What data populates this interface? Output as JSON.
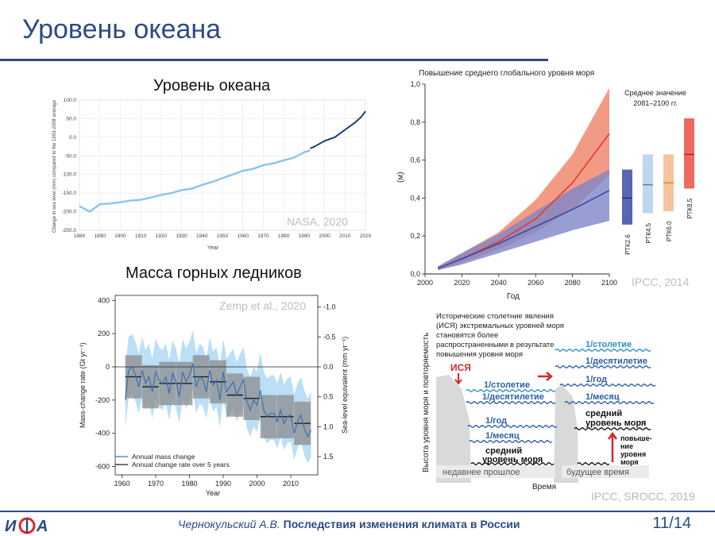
{
  "slide": {
    "title": "Уровень океана",
    "footer_author": "Чернокульский А.В.",
    "footer_talk": "Последствия изменения климата в России",
    "page": "11/14",
    "logo_text": "ИФА",
    "colors": {
      "accent": "#2b4a86",
      "logo_red": "#e0262c"
    }
  },
  "panels": {
    "sea_level": {
      "heading": "Уровень океана",
      "credit": "NASA, 2020"
    },
    "glaciers": {
      "heading": "Масса горных ледников",
      "credit": "Zemp et al., 2020"
    },
    "projection": {
      "credit": "IPCC, 2014"
    },
    "extremes": {
      "credit": "IPCC, SROCC, 2019"
    }
  },
  "chart_data": [
    {
      "id": "nasa-sea-level",
      "type": "line",
      "ylabel": "Change in sea level (mm) compared to the 1993-2008 average",
      "xlabel": "Year",
      "xlim": [
        1880,
        2020
      ],
      "ylim": [
        -250,
        100
      ],
      "xticks": [
        1880,
        1890,
        1900,
        1910,
        1920,
        1930,
        1940,
        1950,
        1960,
        1970,
        1980,
        1990,
        2000,
        2010,
        2020
      ],
      "yticks": [
        "100.0",
        "50.0",
        "0.0",
        "-50.0",
        "-100.0",
        "-150.0",
        "-200.0",
        "-250.0"
      ],
      "grid": true,
      "series": [
        {
          "color": "#8cc2ee",
          "x": [
            1880,
            1885,
            1890,
            1895,
            1900,
            1905,
            1910,
            1915,
            1920,
            1925,
            1930,
            1935,
            1940,
            1945,
            1950,
            1955,
            1960,
            1965,
            1970,
            1975,
            1980,
            1985,
            1990,
            1993
          ],
          "y": [
            -185,
            -200,
            -180,
            -178,
            -175,
            -170,
            -168,
            -162,
            -155,
            -150,
            -142,
            -138,
            -128,
            -120,
            -110,
            -100,
            -90,
            -85,
            -75,
            -70,
            -62,
            -55,
            -40,
            -35
          ]
        },
        {
          "color": "#1d3f6e",
          "x": [
            1993,
            1995,
            2000,
            2005,
            2010,
            2015,
            2018,
            2020
          ],
          "y": [
            -30,
            -25,
            -10,
            0,
            20,
            40,
            55,
            70
          ]
        }
      ]
    },
    {
      "id": "glacier-mass",
      "type": "line",
      "xlabel": "Year",
      "ylabel": "Mass-change rate (Gt yr⁻¹)",
      "ylabel_right": "Sea-level equivalent (mm yr⁻¹)",
      "xlim": [
        1958,
        2018
      ],
      "ylim": [
        -650,
        430
      ],
      "xticks": [
        1960,
        1970,
        1980,
        1990,
        2000,
        2010
      ],
      "yticks": [
        400,
        200,
        0,
        -200,
        -400,
        -600
      ],
      "yticks_right": [
        "-1.0",
        "-0.5",
        "0.0",
        "0.5",
        "1.0",
        "1.5"
      ],
      "legend": [
        "Annual mass change",
        "Annual change rate over 5 years"
      ],
      "legend_position": "bottom-left",
      "series": [
        {
          "name": "Annual mass change",
          "color": "#3d6fb0",
          "x": [
            1961,
            1962,
            1963,
            1964,
            1965,
            1966,
            1967,
            1968,
            1969,
            1970,
            1971,
            1972,
            1973,
            1974,
            1975,
            1976,
            1977,
            1978,
            1979,
            1980,
            1981,
            1982,
            1983,
            1984,
            1985,
            1986,
            1987,
            1988,
            1989,
            1990,
            1991,
            1992,
            1993,
            1994,
            1995,
            1996,
            1997,
            1998,
            1999,
            2000,
            2001,
            2002,
            2003,
            2004,
            2005,
            2006,
            2007,
            2008,
            2009,
            2010,
            2011,
            2012,
            2013,
            2014,
            2015,
            2016
          ],
          "y": [
            -200,
            -20,
            0,
            -50,
            -120,
            -20,
            -100,
            -60,
            -150,
            -30,
            -80,
            -100,
            -60,
            -160,
            -40,
            -90,
            -180,
            -30,
            -90,
            -50,
            20,
            -120,
            -60,
            -80,
            -150,
            -20,
            -110,
            -80,
            -200,
            -30,
            -150,
            -120,
            -90,
            -170,
            -120,
            -80,
            -210,
            -260,
            -200,
            -230,
            -140,
            -260,
            -300,
            -280,
            -280,
            -330,
            -260,
            -340,
            -300,
            -290,
            -400,
            -330,
            -290,
            -370,
            -420,
            -380
          ]
        },
        {
          "name": "Annual change rate over 5 years",
          "color": "#111111",
          "x": [
            1961,
            1965,
            1966,
            1970,
            1971,
            1975,
            1976,
            1980,
            1981,
            1985,
            1986,
            1990,
            1991,
            1995,
            1996,
            2000,
            2001,
            2005,
            2006,
            2010,
            2011,
            2015
          ],
          "y": [
            -60,
            -60,
            -120,
            -120,
            -100,
            -100,
            -100,
            -100,
            -60,
            -60,
            -90,
            -90,
            -170,
            -170,
            -190,
            -190,
            -300,
            -300,
            -300,
            -300,
            -340,
            -340
          ]
        }
      ]
    },
    {
      "id": "ipcc-projection",
      "type": "area",
      "title": "Повышение среднего глобального уровня моря",
      "xlabel": "Год",
      "ylabel": "(м)",
      "xlim": [
        2000,
        2100
      ],
      "ylim": [
        0.0,
        1.0
      ],
      "xticks": [
        2000,
        2020,
        2040,
        2060,
        2080,
        2100
      ],
      "yticks": [
        "1,0",
        "0,8",
        "0,6",
        "0,4",
        "0,2",
        "0,0"
      ],
      "series": [
        {
          "color": "#e8382c",
          "x": [
            2007,
            2020,
            2040,
            2060,
            2080,
            2100
          ],
          "y": [
            0.03,
            0.08,
            0.17,
            0.29,
            0.48,
            0.74
          ],
          "low": [
            0.02,
            0.06,
            0.13,
            0.22,
            0.34,
            0.52
          ],
          "high": [
            0.04,
            0.11,
            0.22,
            0.39,
            0.63,
            0.98
          ]
        },
        {
          "color": "#3a4aa8",
          "x": [
            2007,
            2020,
            2040,
            2060,
            2080,
            2100
          ],
          "y": [
            0.03,
            0.08,
            0.16,
            0.25,
            0.34,
            0.44
          ],
          "low": [
            0.02,
            0.05,
            0.11,
            0.17,
            0.23,
            0.28
          ],
          "high": [
            0.04,
            0.11,
            0.21,
            0.33,
            0.45,
            0.55
          ]
        }
      ],
      "bars": {
        "title": "Среднее значение 2081–2100 гг.",
        "categories": [
          "РТК2.6",
          "РТК4.5",
          "РТК6.0",
          "РТК8.5"
        ],
        "low": [
          0.26,
          0.32,
          0.33,
          0.45
        ],
        "mean": [
          0.4,
          0.47,
          0.48,
          0.63
        ],
        "high": [
          0.55,
          0.63,
          0.63,
          0.82
        ],
        "colors": [
          "#3a4aa8",
          "#a8c8ea",
          "#f0b07c",
          "#e8382c"
        ]
      }
    },
    {
      "id": "extreme-events-diagram",
      "type": "diagram",
      "caption": "Исторические столетние явления (ИСЯ) экстремальных уровней моря становятся более распространенными в результате повышения уровня моря",
      "ylabel": "Высота уровня моря и повторяемость",
      "xlabel": "Время",
      "left_panel": {
        "label": "недавнее прошлое",
        "ise_label": "ИСЯ",
        "levels": [
          "1/столетие",
          "1/десятилетие",
          "1/год",
          "1/месяц"
        ],
        "mean_label": "средний уровень моря"
      },
      "right_panel": {
        "label": "будущее время",
        "levels": [
          "1/столетие",
          "1/десятилетие",
          "1/год",
          "1/месяц"
        ],
        "mean_label": "средний уровень моря",
        "rise_label": "повыше- ние уровня моря"
      }
    }
  ]
}
